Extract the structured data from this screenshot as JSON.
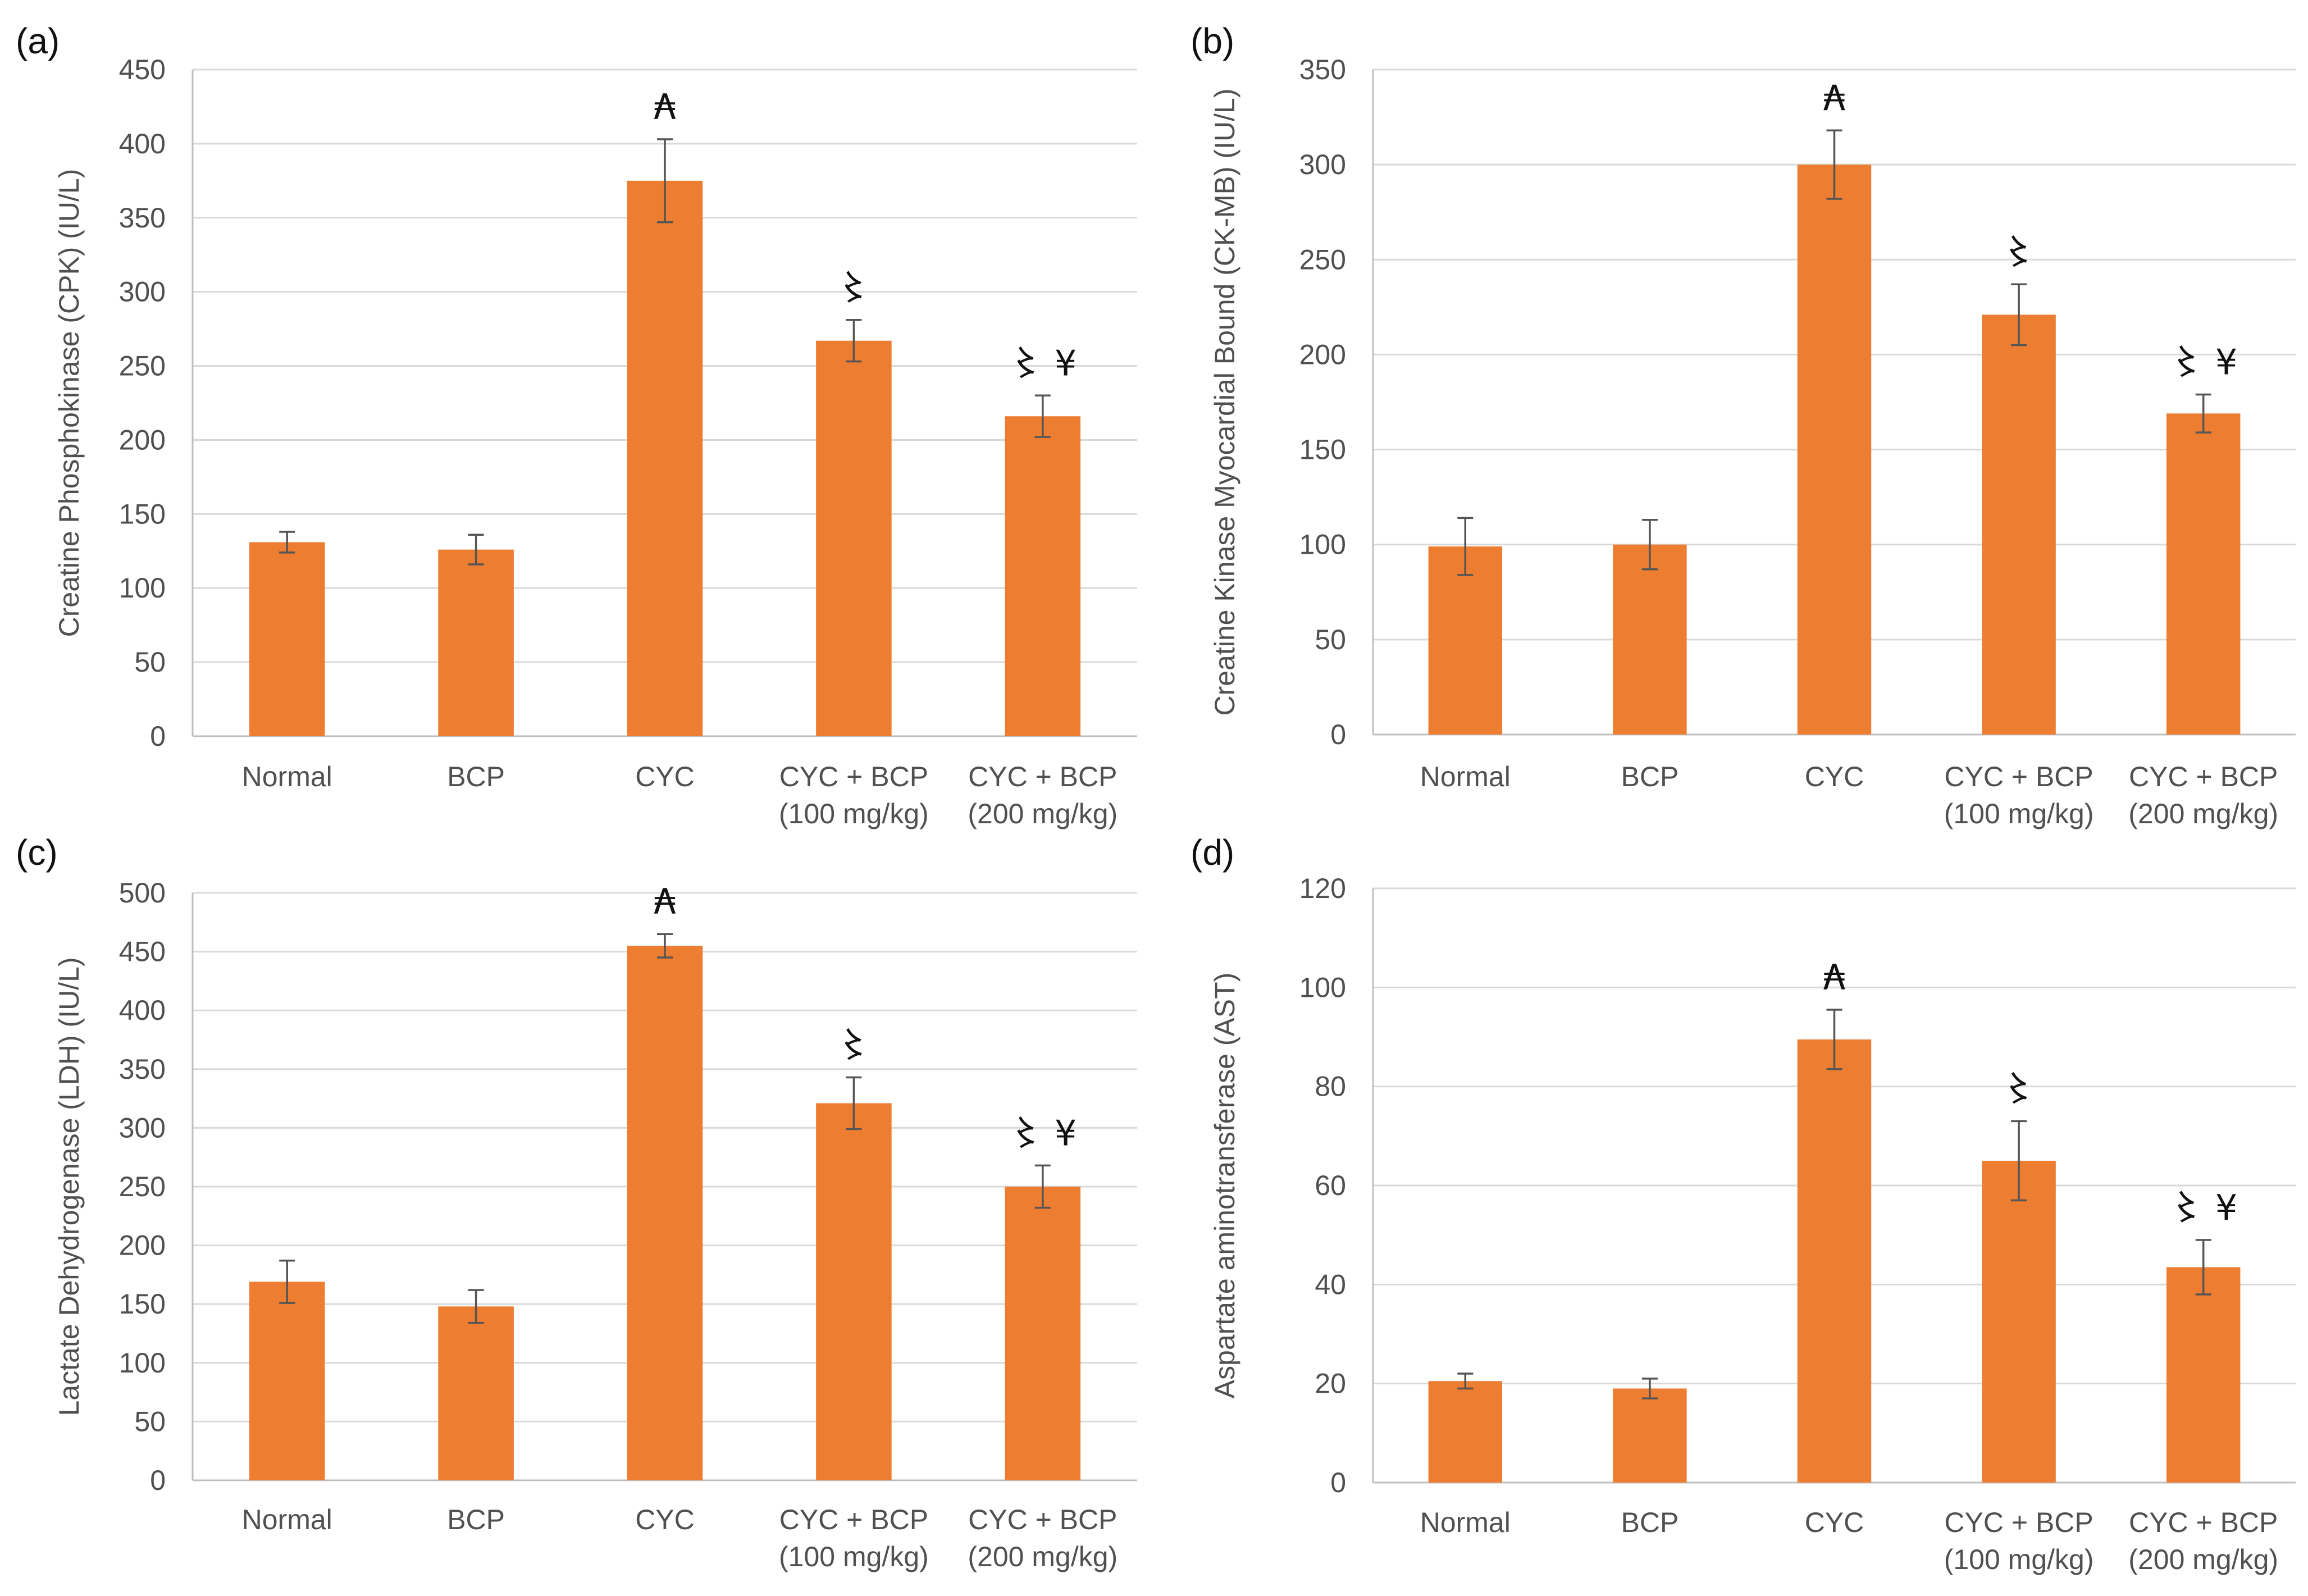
{
  "colors": {
    "bar": "#ED7D31",
    "grid": "#D9D9D9",
    "axis": "#BFBFBF",
    "error": "#555555",
    "text": "#505050"
  },
  "chart_data": [
    {
      "type": "bar",
      "panel": "(a)",
      "ylabel": "Creatine Phosphokinase (CPK) (IU/L)",
      "ylim": [
        0,
        450
      ],
      "ticks": [
        0,
        50,
        100,
        150,
        200,
        250,
        300,
        350,
        400,
        450
      ],
      "grid": true,
      "categories": [
        [
          "Normal"
        ],
        [
          "BCP"
        ],
        [
          "CYC"
        ],
        [
          "CYC + BCP",
          "(100 mg/kg)"
        ],
        [
          "CYC + BCP",
          "(200 mg/kg)"
        ]
      ],
      "values": [
        131,
        126,
        375,
        267,
        216
      ],
      "errors": [
        7,
        10,
        28,
        14,
        14
      ],
      "significance": [
        "",
        "",
        "₳",
        "〻",
        "〻 ¥"
      ]
    },
    {
      "type": "bar",
      "panel": "(b)",
      "ylabel": "Creatine Kinase Myocardial Bound (CK-MB) (IU/L)",
      "ylim": [
        0,
        350
      ],
      "ticks": [
        0,
        50,
        100,
        150,
        200,
        250,
        300,
        350
      ],
      "grid": true,
      "categories": [
        [
          "Normal"
        ],
        [
          "BCP"
        ],
        [
          "CYC"
        ],
        [
          "CYC + BCP",
          "(100 mg/kg)"
        ],
        [
          "CYC + BCP",
          "(200 mg/kg)"
        ]
      ],
      "values": [
        99,
        100,
        300,
        221,
        169
      ],
      "errors": [
        15,
        13,
        18,
        16,
        10
      ],
      "significance": [
        "",
        "",
        "₳",
        "〻",
        "〻 ¥"
      ]
    },
    {
      "type": "bar",
      "panel": "(c)",
      "ylabel": "Lactate Dehydrogenase (LDH) (IU/L)",
      "ylim": [
        0,
        500
      ],
      "ticks": [
        0,
        50,
        100,
        150,
        200,
        250,
        300,
        350,
        400,
        450,
        500
      ],
      "grid": true,
      "categories": [
        [
          "Normal"
        ],
        [
          "BCP"
        ],
        [
          "CYC"
        ],
        [
          "CYC + BCP",
          "(100 mg/kg)"
        ],
        [
          "CYC + BCP",
          "(200 mg/kg)"
        ]
      ],
      "values": [
        169,
        148,
        455,
        321,
        250
      ],
      "errors": [
        18,
        14,
        10,
        22,
        18
      ],
      "significance": [
        "",
        "",
        "₳",
        "〻",
        "〻 ¥"
      ]
    },
    {
      "type": "bar",
      "panel": "(d)",
      "ylabel": "Aspartate aminotransferase (AST)",
      "ylim": [
        0,
        120
      ],
      "ticks": [
        0,
        20,
        40,
        60,
        80,
        100,
        120
      ],
      "grid": true,
      "categories": [
        [
          "Normal"
        ],
        [
          "BCP"
        ],
        [
          "CYC"
        ],
        [
          "CYC + BCP",
          "(100 mg/kg)"
        ],
        [
          "CYC + BCP",
          "(200 mg/kg)"
        ]
      ],
      "values": [
        20.5,
        19,
        89.5,
        65,
        43.5
      ],
      "errors": [
        1.5,
        2,
        6,
        8,
        5.5
      ],
      "significance": [
        "",
        "",
        "₳",
        "〻",
        "〻 ¥"
      ]
    }
  ]
}
